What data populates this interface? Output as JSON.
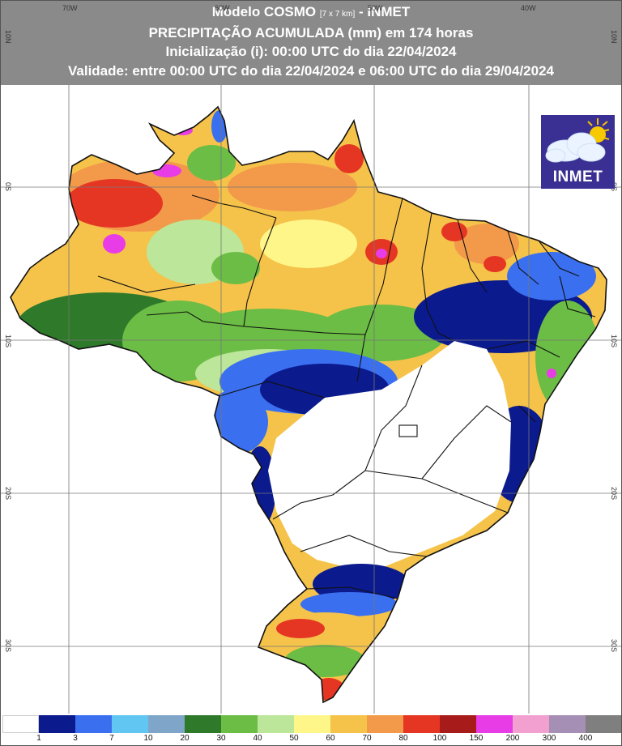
{
  "header": {
    "line1_main": "Modelo COSMO",
    "line1_res": "[7 x 7 km]",
    "line1_end": "- INMET",
    "line2": "PRECIPITAÇÃO ACUMULADA (mm) em 174 horas",
    "line3": "Inicialização (i): 00:00 UTC do dia 22/04/2024",
    "line4": "Validade: entre 00:00 UTC do dia 22/04/2024 e 06:00 UTC do dia 29/04/2024"
  },
  "grid": {
    "lon_labels": [
      "70W",
      "60W",
      "50W",
      "40W"
    ],
    "lat_labels": [
      "10N",
      "0S",
      "10S",
      "20S",
      "30S"
    ]
  },
  "logo": {
    "text": "INMET",
    "icon": "cloud-sun-icon"
  },
  "legend": {
    "colors": [
      "#ffffff",
      "#0b1a8c",
      "#3a6ff0",
      "#62c6f2",
      "#7fa6c8",
      "#2f7a2a",
      "#6bbd45",
      "#bce69a",
      "#fff68a",
      "#f5c34a",
      "#f39a4a",
      "#e53624",
      "#a71b1b",
      "#e83ce6",
      "#f2a0cf",
      "#a58fb4",
      "#7f7f7f"
    ],
    "ticks": [
      "1",
      "3",
      "7",
      "10",
      "20",
      "30",
      "40",
      "50",
      "60",
      "70",
      "80",
      "100",
      "150",
      "200",
      "300",
      "400"
    ]
  },
  "colors": {
    "header_bg": "#8a8a8a",
    "logo_bg": "#3a2f92"
  }
}
